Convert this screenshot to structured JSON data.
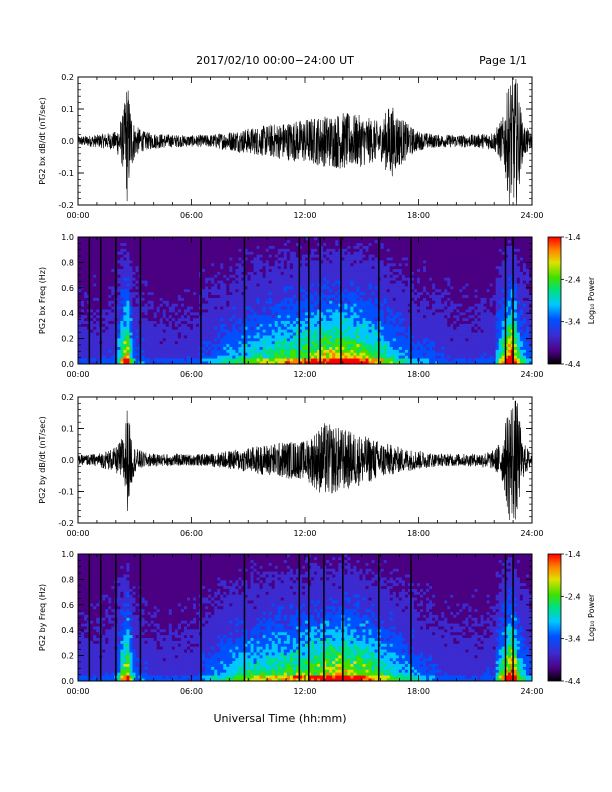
{
  "header": {
    "title": "2017/02/10  00:00−24:00 UT",
    "page": "Page 1/1"
  },
  "footer": {
    "xlabel": "Universal Time (hh:mm)"
  },
  "colors": {
    "trace": "#000000",
    "spectrogram_scale": [
      "#000000",
      "#4b0082",
      "#3b2bd0",
      "#0050ff",
      "#00c8ff",
      "#00e080",
      "#40e000",
      "#e0e000",
      "#ff8000",
      "#ff0000"
    ]
  },
  "chart_data": [
    {
      "type": "line",
      "ylabel": "PG2 bx dB/dt (nT/sec)",
      "xlim": [
        0,
        24
      ],
      "ylim": [
        -0.2,
        0.2
      ],
      "x_ticks": [
        "00:00",
        "06:00",
        "12:00",
        "18:00",
        "24:00"
      ],
      "y_ticks": [
        "-0.2",
        "-0.1",
        "0.0",
        "0.1",
        "0.2"
      ],
      "x_unit": "hours UT",
      "envelope": {
        "x": [
          0,
          1,
          2,
          2.4,
          2.6,
          2.8,
          3,
          3.5,
          4,
          5,
          6,
          7,
          8,
          9,
          10,
          11,
          12,
          13,
          14,
          15,
          16,
          16.5,
          17,
          17.5,
          18,
          19,
          20,
          21,
          22,
          22.5,
          22.8,
          23,
          23.2,
          23.5,
          24
        ],
        "y": [
          0.015,
          0.02,
          0.03,
          0.09,
          0.2,
          0.1,
          0.05,
          0.03,
          0.025,
          0.02,
          0.018,
          0.02,
          0.03,
          0.04,
          0.05,
          0.06,
          0.07,
          0.08,
          0.09,
          0.08,
          0.06,
          0.12,
          0.08,
          0.05,
          0.03,
          0.02,
          0.02,
          0.02,
          0.03,
          0.08,
          0.2,
          0.2,
          0.2,
          0.06,
          0.02
        ]
      }
    },
    {
      "type": "heatmap",
      "ylabel": "PG2 bx Freq (Hz)",
      "xlim": [
        0,
        24
      ],
      "ylim": [
        0.0,
        1.0
      ],
      "x_ticks": [
        "00:00",
        "06:00",
        "12:00",
        "18:00",
        "24:00"
      ],
      "y_ticks": [
        "0.0",
        "0.2",
        "0.4",
        "0.6",
        "0.8",
        "1.0"
      ],
      "colorbar": {
        "label": "Log₁₀ Power",
        "ticks": [
          "-1.4",
          "-2.4",
          "-3.4",
          "-4.4"
        ],
        "range": [
          -4.4,
          -1.4
        ]
      },
      "activity": {
        "x": [
          0,
          1,
          2,
          2.4,
          2.6,
          2.8,
          3,
          4,
          6,
          8,
          9,
          10,
          11,
          12,
          13,
          14,
          15,
          16,
          17,
          18,
          19,
          20,
          21,
          22,
          22.7,
          23,
          23.3,
          24
        ],
        "level": [
          0.15,
          0.15,
          0.2,
          0.7,
          0.9,
          0.5,
          0.25,
          0.15,
          0.15,
          0.35,
          0.45,
          0.5,
          0.6,
          0.65,
          0.75,
          0.8,
          0.7,
          0.55,
          0.35,
          0.25,
          0.2,
          0.15,
          0.15,
          0.2,
          0.9,
          1.0,
          0.5,
          0.2
        ]
      },
      "dark_lines": [
        0.6,
        1.2,
        2.0,
        3.3,
        6.5,
        8.8,
        11.7,
        12.2,
        12.8,
        13.9,
        15.9,
        17.6,
        22.6,
        23.0
      ]
    },
    {
      "type": "line",
      "ylabel": "PG2 by dB/dt (nT/sec)",
      "xlim": [
        0,
        24
      ],
      "ylim": [
        -0.2,
        0.2
      ],
      "x_ticks": [
        "00:00",
        "06:00",
        "12:00",
        "18:00",
        "24:00"
      ],
      "y_ticks": [
        "-0.2",
        "-0.1",
        "0.0",
        "0.1",
        "0.2"
      ],
      "x_unit": "hours UT",
      "envelope": {
        "x": [
          0,
          1,
          2,
          2.4,
          2.6,
          2.8,
          3,
          3.5,
          4,
          5,
          6,
          7,
          8,
          9,
          10,
          11,
          12,
          12.5,
          13,
          14,
          15,
          16,
          16.5,
          17,
          18,
          19,
          20,
          21,
          22,
          22.5,
          22.8,
          23,
          23.2,
          23.5,
          24
        ],
        "y": [
          0.015,
          0.02,
          0.04,
          0.08,
          0.17,
          0.09,
          0.04,
          0.025,
          0.02,
          0.02,
          0.018,
          0.02,
          0.03,
          0.04,
          0.05,
          0.06,
          0.06,
          0.09,
          0.12,
          0.1,
          0.08,
          0.06,
          0.05,
          0.04,
          0.03,
          0.02,
          0.02,
          0.02,
          0.03,
          0.08,
          0.2,
          0.2,
          0.2,
          0.06,
          0.02
        ]
      }
    },
    {
      "type": "heatmap",
      "ylabel": "PG2 by Freq (Hz)",
      "xlim": [
        0,
        24
      ],
      "ylim": [
        0.0,
        1.0
      ],
      "x_ticks": [
        "00:00",
        "06:00",
        "12:00",
        "18:00",
        "24:00"
      ],
      "y_ticks": [
        "0.0",
        "0.2",
        "0.4",
        "0.6",
        "0.8",
        "1.0"
      ],
      "colorbar": {
        "label": "Log₁₀ Power",
        "ticks": [
          "-1.4",
          "-2.4",
          "-3.4",
          "-4.4"
        ],
        "range": [
          -4.4,
          -1.4
        ]
      },
      "activity": {
        "x": [
          0,
          1,
          2,
          2.4,
          2.6,
          2.8,
          3,
          4,
          6,
          8,
          9,
          10,
          11,
          12,
          13,
          14,
          15,
          16,
          17,
          18,
          19,
          20,
          21,
          22,
          22.7,
          23,
          23.3,
          24
        ],
        "level": [
          0.15,
          0.15,
          0.2,
          0.65,
          0.85,
          0.5,
          0.25,
          0.15,
          0.15,
          0.4,
          0.5,
          0.55,
          0.6,
          0.65,
          0.75,
          0.8,
          0.7,
          0.55,
          0.4,
          0.3,
          0.2,
          0.15,
          0.15,
          0.2,
          0.9,
          1.0,
          0.5,
          0.2
        ]
      },
      "dark_lines": [
        0.6,
        1.2,
        2.0,
        3.3,
        6.5,
        8.8,
        11.7,
        12.2,
        13.0,
        14.0,
        15.9,
        17.6,
        22.6,
        23.0
      ]
    }
  ]
}
